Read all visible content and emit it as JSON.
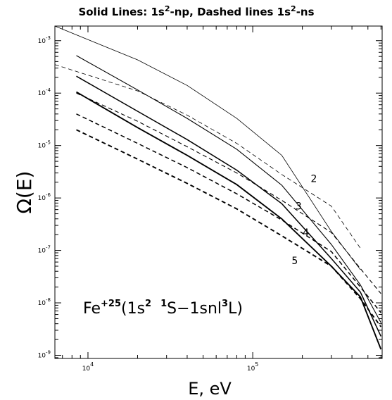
{
  "chart_data": {
    "type": "line",
    "title": "Solid Lines: 1s2-np, Dashed lines 1s2-ns",
    "title_parts": {
      "prefix": "Solid Lines: 1s",
      "sup1": "2",
      "middle": "-np, Dashed lines 1s",
      "sup2": "2",
      "suffix": "-ns"
    },
    "xlabel": "E, eV",
    "ylabel": "Ω(E)",
    "xscale": "log",
    "yscale": "log",
    "xlim": [
      6300,
      610000
    ],
    "ylim": [
      8.7e-10,
      0.0019
    ],
    "x_ticks": [
      {
        "value": 10000,
        "base": "10",
        "exp": "4"
      },
      {
        "value": 100000,
        "base": "10",
        "exp": "5"
      }
    ],
    "y_ticks": [
      {
        "value": 0.001,
        "base": "10",
        "exp": "-3"
      },
      {
        "value": 0.0001,
        "base": "10",
        "exp": "-4"
      },
      {
        "value": 1e-05,
        "base": "10",
        "exp": "-5"
      },
      {
        "value": 1e-06,
        "base": "10",
        "exp": "-6"
      },
      {
        "value": 1e-07,
        "base": "10",
        "exp": "-7"
      },
      {
        "value": 1e-08,
        "base": "10",
        "exp": "-8"
      },
      {
        "value": 1e-09,
        "base": "10",
        "exp": "-9"
      }
    ],
    "annotation": {
      "element": "Fe",
      "charge": "+25",
      "open": "(1s",
      "sup_a": "2",
      "space": " ",
      "sup_b": "1",
      "mid": "S−1snl",
      "sup_c": "3",
      "close": "L)"
    },
    "curve_labels": [
      {
        "text": "2",
        "x": 235000,
        "y": 2e-06
      },
      {
        "text": "3",
        "x": 190000,
        "y": 6e-07
      },
      {
        "text": "4",
        "x": 210000,
        "y": 1.9e-07
      },
      {
        "text": "5",
        "x": 180000,
        "y": 5.5e-08
      }
    ],
    "series": [
      {
        "style": "solid",
        "n": "2",
        "x": [
          6300,
          10000,
          20000,
          40000,
          80000,
          150000,
          300000,
          450000
        ],
        "y": [
          0.0019,
          0.00105,
          0.00043,
          0.00014,
          3.3e-05,
          6.5e-06,
          2.3e-07,
          4.3e-08
        ]
      },
      {
        "style": "solid",
        "n": "3",
        "x": [
          8500,
          20000,
          40000,
          80000,
          150000,
          300000,
          450000,
          600000
        ],
        "y": [
          0.00052,
          0.000115,
          3.3e-05,
          8.5e-06,
          1.75e-06,
          1.3e-07,
          2.2e-08,
          4.2e-09
        ]
      },
      {
        "style": "solid",
        "n": "4",
        "x": [
          8500,
          20000,
          40000,
          80000,
          150000,
          300000,
          450000,
          600000
        ],
        "y": [
          0.00021,
          4.5e-05,
          1.3e-05,
          3.4e-06,
          7.8e-07,
          7e-08,
          1.6e-08,
          2.3e-09
        ]
      },
      {
        "style": "solid",
        "n": "5",
        "x": [
          8500,
          20000,
          40000,
          80000,
          150000,
          300000,
          450000,
          600000
        ],
        "y": [
          0.000105,
          2.2e-05,
          6.5e-06,
          1.8e-06,
          4e-07,
          5e-08,
          1.3e-08,
          1.3e-09
        ]
      },
      {
        "style": "dashed",
        "n": "2",
        "x": [
          6300,
          20000,
          40000,
          80000,
          150000,
          300000,
          450000
        ],
        "y": [
          0.00035,
          0.00011,
          3.8e-05,
          1.1e-05,
          2.8e-06,
          7e-07,
          1.1e-07
        ]
      },
      {
        "style": "dashed",
        "n": "3",
        "x": [
          8500,
          20000,
          40000,
          80000,
          150000,
          300000,
          450000,
          600000
        ],
        "y": [
          0.0001,
          2.9e-05,
          9.5e-06,
          3e-06,
          9e-07,
          2.2e-07,
          4.5e-08,
          1.5e-08
        ]
      },
      {
        "style": "dashed",
        "n": "4",
        "x": [
          8500,
          20000,
          40000,
          80000,
          150000,
          300000,
          450000,
          600000
        ],
        "y": [
          4e-05,
          1.1e-05,
          3.8e-06,
          1.2e-06,
          3.8e-07,
          9.5e-08,
          2e-08,
          6.5e-09
        ]
      },
      {
        "style": "dashed",
        "n": "5",
        "x": [
          8500,
          20000,
          40000,
          80000,
          150000,
          300000,
          450000,
          600000
        ],
        "y": [
          2e-05,
          5.5e-06,
          1.9e-06,
          6.2e-07,
          1.9e-07,
          5e-08,
          1.2e-08,
          3.5e-09
        ]
      }
    ]
  }
}
